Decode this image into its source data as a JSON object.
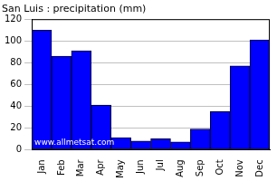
{
  "chart_data": {
    "type": "bar",
    "title": "San Luis : precipitation (mm)",
    "categories": [
      "Jan",
      "Feb",
      "Mar",
      "Apr",
      "May",
      "Jun",
      "Jul",
      "Aug",
      "Sep",
      "Oct",
      "Nov",
      "Dec"
    ],
    "values": [
      110,
      86,
      91,
      41,
      11,
      8,
      10,
      7,
      19,
      35,
      77,
      101
    ],
    "color": "#0000ff",
    "ylim": [
      0,
      120
    ],
    "yticks": [
      0,
      20,
      40,
      60,
      80,
      100,
      120
    ],
    "grid": true,
    "annotations": [
      "www.allmetsat.com"
    ]
  }
}
